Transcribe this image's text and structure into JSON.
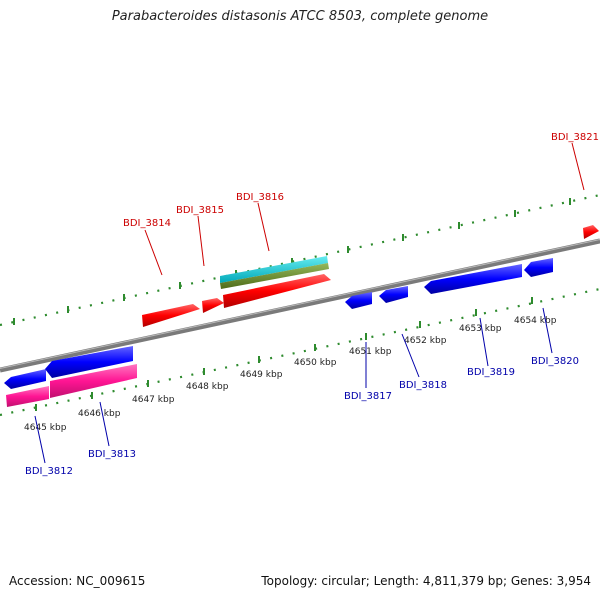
{
  "title": "Parabacteroides distasonis ATCC 8503, complete genome",
  "accession": "Accession: NC_009615",
  "summary": "Topology: circular; Length: 4,811,379 bp; Genes: 3,954",
  "kbp_labels": [
    "4645 kbp",
    "4646 kbp",
    "4647 kbp",
    "4648 kbp",
    "4649 kbp",
    "4650 kbp",
    "4651 kbp",
    "4652 kbp",
    "4653 kbp",
    "4654 kbp"
  ],
  "genes_top": [
    "BDI_3814",
    "BDI_3815",
    "BDI_3816",
    "BDI_3821"
  ],
  "genes_bottom": [
    "BDI_3812",
    "BDI_3813",
    "BDI_3817",
    "BDI_3818",
    "BDI_3819",
    "BDI_3820"
  ],
  "colors": {
    "forward_gene": "#ff0000",
    "reverse_gene": "#0000ff",
    "pink_feature": "#ff1493",
    "cyan_feature": "#00c8d8",
    "olive_feature": "#6b8e23",
    "ruler_ticks": "#2e8b2e",
    "backbone": "#808080"
  }
}
